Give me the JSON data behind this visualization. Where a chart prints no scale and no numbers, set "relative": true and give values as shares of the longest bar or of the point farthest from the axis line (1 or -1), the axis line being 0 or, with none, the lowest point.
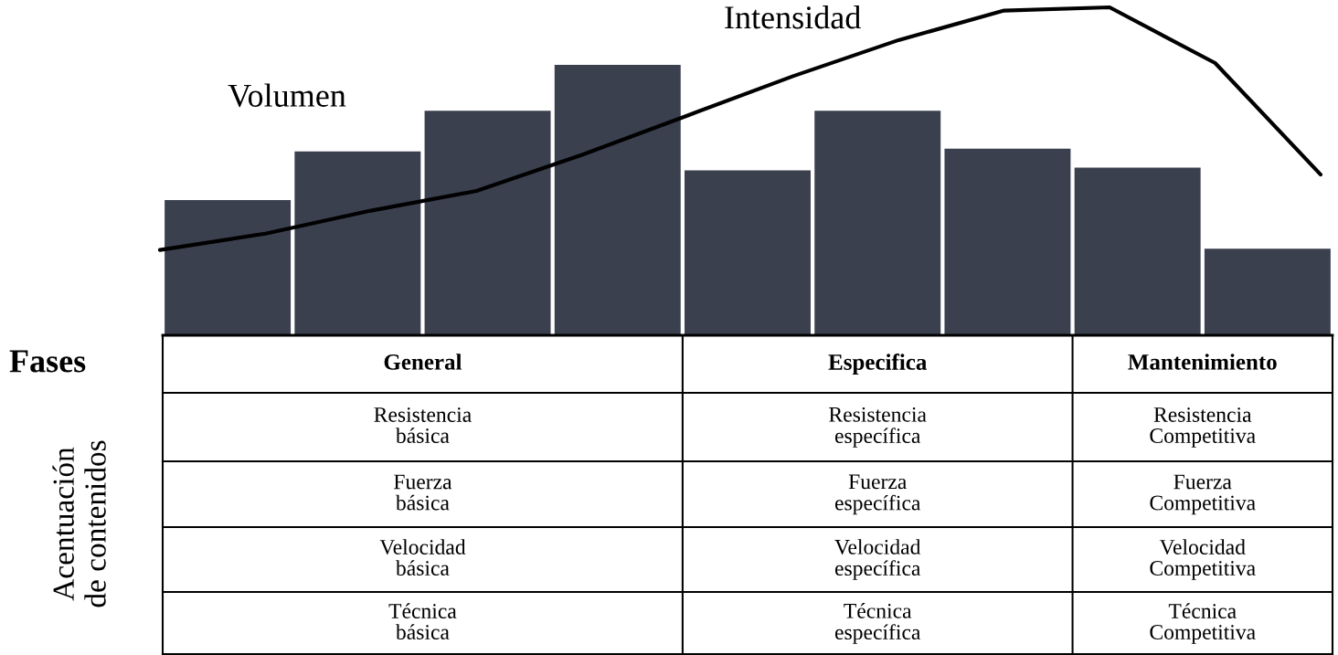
{
  "chart_data": [
    {
      "type": "bar",
      "relative": true,
      "categories": [
        null,
        null,
        null,
        null,
        null,
        null,
        null,
        null,
        null
      ],
      "series": [
        {
          "name": "Volumen",
          "color": "#3b404f",
          "values": [
            0.5,
            0.68,
            0.83,
            1.0,
            0.61,
            0.83,
            0.69,
            0.62,
            0.32
          ]
        }
      ],
      "annotations": [
        "Fases",
        "General",
        "Especifica",
        "Mantenimiento",
        "Acentuación\nde contenidos",
        "Resistencia\nbásica",
        "Resistencia\nespecífica",
        "Resistencia\nCompetitiva",
        "Fuerza\nbásica",
        "Fuerza\nespecífica",
        "Fuerza\nCompetitiva",
        "Velocidad\nbásica",
        "Velocidad\nespecífica",
        "Velocidad\nCompetitiva",
        "Técnica\nbásica",
        "Técnica\nespecífica",
        "Técnica\nCompetitiva"
      ]
    },
    {
      "type": "line",
      "relative": true,
      "categories": [
        null,
        null,
        null,
        null,
        null,
        null,
        null,
        null,
        null,
        null,
        null,
        null
      ],
      "series": [
        {
          "name": "Intensidad",
          "color": "#000000",
          "values": [
            0.26,
            0.31,
            0.38,
            0.44,
            0.55,
            0.67,
            0.79,
            0.9,
            0.99,
            1.0,
            0.83,
            0.49
          ]
        }
      ]
    }
  ]
}
